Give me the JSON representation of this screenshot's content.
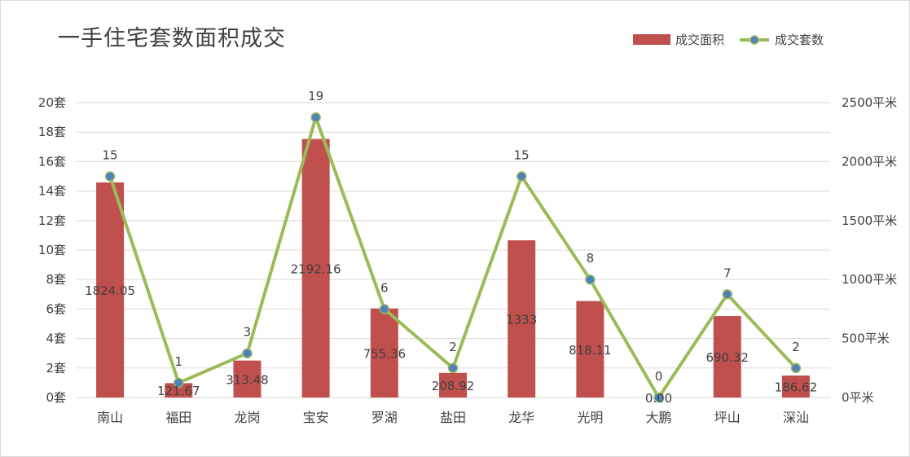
{
  "title": "一手住宅套数面积成交",
  "colors": {
    "bar": "#c0504d",
    "line": "#9bbb59",
    "marker": "#4f81bd",
    "grid": "#d9d9d9",
    "text": "#404040"
  },
  "legend": {
    "bar_label": "成交面积",
    "line_label": "成交套数",
    "placement": "top-right"
  },
  "chart_data": {
    "type": "bar+line",
    "title": "一手住宅套数面积成交",
    "categories": [
      "南山",
      "福田",
      "龙岗",
      "宝安",
      "罗湖",
      "盐田",
      "龙华",
      "光明",
      "大鹏",
      "坪山",
      "深汕"
    ],
    "series": [
      {
        "name": "成交面积",
        "type": "bar",
        "axis": "right",
        "values": [
          1824.05,
          121.67,
          313.48,
          2192.16,
          755.36,
          208.92,
          1333,
          818.11,
          0,
          690.32,
          186.62
        ],
        "labels": [
          "1824.05",
          "121.67",
          "313.48",
          "2192.16",
          "755.36",
          "208.92",
          "1333",
          "818.11",
          "0.00",
          "690.32",
          "186.62"
        ]
      },
      {
        "name": "成交套数",
        "type": "line",
        "axis": "left",
        "values": [
          15,
          1,
          3,
          19,
          6,
          2,
          15,
          8,
          0,
          7,
          2
        ],
        "labels": [
          "15",
          "1",
          "3",
          "19",
          "6",
          "2",
          "15",
          "8",
          "0",
          "7",
          "2"
        ]
      }
    ],
    "y_left": {
      "range": [
        0,
        20
      ],
      "step": 2,
      "tick_labels": [
        "0套",
        "2套",
        "4套",
        "6套",
        "8套",
        "10套",
        "12套",
        "14套",
        "16套",
        "18套",
        "20套"
      ]
    },
    "y_right": {
      "range": [
        0,
        2500
      ],
      "step": 500,
      "tick_labels": [
        "0平米",
        "500平米",
        "1000平米",
        "1500平米",
        "2000平米",
        "2500平米"
      ]
    },
    "grid": true
  }
}
